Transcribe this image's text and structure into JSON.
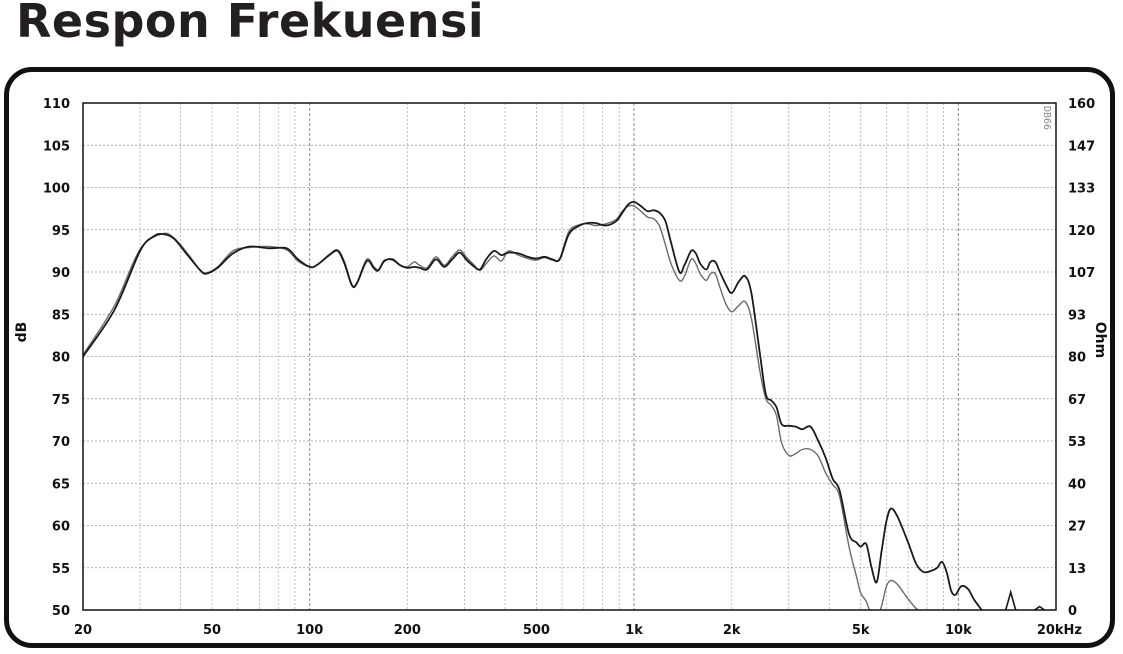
{
  "page": {
    "title": "Respon Frekuensi"
  },
  "chart_data": {
    "type": "line",
    "title": "Respon Frekuensi",
    "xlabel": "",
    "ylabel": "dB",
    "y2label": "Ohm",
    "x_scale": "log",
    "xlim": [
      20,
      20000
    ],
    "ylim": [
      50,
      110
    ],
    "y2lim": [
      0,
      160
    ],
    "x_ticks": [
      {
        "value": 20,
        "label": "20"
      },
      {
        "value": 50,
        "label": "50"
      },
      {
        "value": 100,
        "label": "100"
      },
      {
        "value": 200,
        "label": "200"
      },
      {
        "value": 500,
        "label": "500"
      },
      {
        "value": 1000,
        "label": "1k"
      },
      {
        "value": 2000,
        "label": "2k"
      },
      {
        "value": 5000,
        "label": "5k"
      },
      {
        "value": 10000,
        "label": "10k"
      },
      {
        "value": 20000,
        "label": "20kHz"
      }
    ],
    "y_ticks": [
      50,
      55,
      60,
      65,
      70,
      75,
      80,
      85,
      90,
      95,
      100,
      105,
      110
    ],
    "y2_ticks": [
      "0",
      "13",
      "27",
      "40",
      "53",
      "67",
      "80",
      "93",
      "107",
      "120",
      "133",
      "147",
      "160"
    ],
    "watermark": "DB66",
    "grid": true,
    "series": [
      {
        "name": "response-dark",
        "color": "#1a1a1a",
        "points": [
          [
            20,
            80
          ],
          [
            25,
            85.5
          ],
          [
            30,
            92.5
          ],
          [
            33,
            94.2
          ],
          [
            35,
            94.5
          ],
          [
            38,
            94
          ],
          [
            42,
            92
          ],
          [
            46,
            90.2
          ],
          [
            48,
            89.8
          ],
          [
            52,
            90.5
          ],
          [
            58,
            92.2
          ],
          [
            65,
            93
          ],
          [
            75,
            92.8
          ],
          [
            85,
            92.8
          ],
          [
            92,
            91.5
          ],
          [
            100,
            90.6
          ],
          [
            105,
            90.8
          ],
          [
            115,
            92
          ],
          [
            122,
            92.5
          ],
          [
            128,
            91
          ],
          [
            135,
            88.4
          ],
          [
            140,
            88.7
          ],
          [
            150,
            91.3
          ],
          [
            158,
            90.4
          ],
          [
            163,
            90.2
          ],
          [
            170,
            91.3
          ],
          [
            180,
            91.5
          ],
          [
            190,
            90.8
          ],
          [
            200,
            90.5
          ],
          [
            210,
            90.6
          ],
          [
            218,
            90.5
          ],
          [
            230,
            90.3
          ],
          [
            245,
            91.5
          ],
          [
            260,
            90.6
          ],
          [
            275,
            91.5
          ],
          [
            290,
            92.3
          ],
          [
            305,
            91.4
          ],
          [
            320,
            90.7
          ],
          [
            335,
            90.3
          ],
          [
            350,
            91.5
          ],
          [
            370,
            92.5
          ],
          [
            390,
            92
          ],
          [
            410,
            92.3
          ],
          [
            440,
            92.2
          ],
          [
            470,
            91.8
          ],
          [
            500,
            91.6
          ],
          [
            530,
            91.8
          ],
          [
            560,
            91.5
          ],
          [
            590,
            91.5
          ],
          [
            630,
            94.5
          ],
          [
            680,
            95.5
          ],
          [
            720,
            95.8
          ],
          [
            760,
            95.8
          ],
          [
            820,
            95.5
          ],
          [
            880,
            96
          ],
          [
            920,
            97
          ],
          [
            960,
            98
          ],
          [
            1000,
            98.3
          ],
          [
            1050,
            97.8
          ],
          [
            1100,
            97.2
          ],
          [
            1150,
            97.3
          ],
          [
            1200,
            97
          ],
          [
            1250,
            96
          ],
          [
            1300,
            93.5
          ],
          [
            1380,
            90
          ],
          [
            1430,
            90.8
          ],
          [
            1500,
            92.5
          ],
          [
            1550,
            92.2
          ],
          [
            1600,
            91
          ],
          [
            1670,
            90.3
          ],
          [
            1720,
            91.2
          ],
          [
            1780,
            91.2
          ],
          [
            1840,
            90
          ],
          [
            1920,
            88.5
          ],
          [
            2000,
            87.5
          ],
          [
            2100,
            88.8
          ],
          [
            2200,
            89.5
          ],
          [
            2300,
            87.5
          ],
          [
            2450,
            80
          ],
          [
            2550,
            75.5
          ],
          [
            2650,
            74.8
          ],
          [
            2750,
            74
          ],
          [
            2850,
            72
          ],
          [
            3000,
            71.8
          ],
          [
            3150,
            71.7
          ],
          [
            3300,
            71.4
          ],
          [
            3500,
            71.7
          ],
          [
            3700,
            70
          ],
          [
            3900,
            68
          ],
          [
            4100,
            65.5
          ],
          [
            4300,
            64.2
          ],
          [
            4600,
            59
          ],
          [
            4850,
            58
          ],
          [
            5000,
            57.5
          ],
          [
            5200,
            57.8
          ],
          [
            5400,
            55
          ],
          [
            5600,
            53.3
          ],
          [
            5800,
            57
          ],
          [
            6000,
            60.5
          ],
          [
            6200,
            62
          ],
          [
            6500,
            61
          ],
          [
            7000,
            58
          ],
          [
            7400,
            55.5
          ],
          [
            7800,
            54.5
          ],
          [
            8200,
            54.6
          ],
          [
            8600,
            55
          ],
          [
            8900,
            55.7
          ],
          [
            9200,
            54.5
          ],
          [
            9500,
            52.3
          ],
          [
            9800,
            51.8
          ],
          [
            10200,
            52.8
          ],
          [
            10700,
            52.5
          ],
          [
            11200,
            51.2
          ],
          [
            11800,
            50
          ]
        ]
      },
      {
        "name": "response-gray",
        "color": "#6b6b6b",
        "points": [
          [
            20,
            80.2
          ],
          [
            25,
            86
          ],
          [
            30,
            92.7
          ],
          [
            35,
            94.5
          ],
          [
            38,
            94.1
          ],
          [
            42,
            92.2
          ],
          [
            46,
            90.2
          ],
          [
            48,
            89.9
          ],
          [
            52,
            90.6
          ],
          [
            58,
            92.5
          ],
          [
            65,
            92.9
          ],
          [
            75,
            93
          ],
          [
            85,
            92.6
          ],
          [
            92,
            91.3
          ],
          [
            100,
            90.6
          ],
          [
            105,
            90.8
          ],
          [
            115,
            92.1
          ],
          [
            122,
            92.6
          ],
          [
            128,
            91.2
          ],
          [
            135,
            88.5
          ],
          [
            140,
            88.8
          ],
          [
            150,
            91.5
          ],
          [
            158,
            90.6
          ],
          [
            163,
            90.3
          ],
          [
            170,
            91.4
          ],
          [
            180,
            91.4
          ],
          [
            190,
            90.8
          ],
          [
            200,
            90.6
          ],
          [
            210,
            91.2
          ],
          [
            218,
            90.8
          ],
          [
            230,
            90.5
          ],
          [
            245,
            91.8
          ],
          [
            260,
            90.8
          ],
          [
            275,
            91.8
          ],
          [
            290,
            92.6
          ],
          [
            305,
            91.7
          ],
          [
            320,
            90.9
          ],
          [
            335,
            90.2
          ],
          [
            350,
            91
          ],
          [
            370,
            91.9
          ],
          [
            390,
            91.3
          ],
          [
            410,
            92.5
          ],
          [
            440,
            92
          ],
          [
            470,
            91.6
          ],
          [
            500,
            91.4
          ],
          [
            530,
            91.7
          ],
          [
            560,
            91.4
          ],
          [
            590,
            91.6
          ],
          [
            630,
            94.8
          ],
          [
            680,
            95.6
          ],
          [
            720,
            95.7
          ],
          [
            760,
            95.5
          ],
          [
            820,
            95.7
          ],
          [
            880,
            96.2
          ],
          [
            920,
            97.2
          ],
          [
            960,
            97.8
          ],
          [
            1000,
            97.8
          ],
          [
            1050,
            97.2
          ],
          [
            1100,
            96.5
          ],
          [
            1150,
            96.3
          ],
          [
            1200,
            95.4
          ],
          [
            1250,
            93.2
          ],
          [
            1300,
            91
          ],
          [
            1380,
            89
          ],
          [
            1430,
            89.5
          ],
          [
            1500,
            91.5
          ],
          [
            1550,
            91
          ],
          [
            1600,
            89.8
          ],
          [
            1670,
            89
          ],
          [
            1720,
            89.8
          ],
          [
            1780,
            89.8
          ],
          [
            1840,
            88.2
          ],
          [
            1920,
            86.2
          ],
          [
            2000,
            85.3
          ],
          [
            2100,
            86
          ],
          [
            2200,
            86.5
          ],
          [
            2300,
            84.5
          ],
          [
            2450,
            78
          ],
          [
            2550,
            75
          ],
          [
            2650,
            74.2
          ],
          [
            2750,
            73
          ],
          [
            2850,
            69.8
          ],
          [
            3000,
            68.3
          ],
          [
            3150,
            68.5
          ],
          [
            3300,
            69
          ],
          [
            3500,
            69
          ],
          [
            3700,
            68.2
          ],
          [
            3900,
            66.2
          ],
          [
            4100,
            64.8
          ],
          [
            4300,
            63.5
          ],
          [
            4600,
            57.5
          ],
          [
            4850,
            54
          ],
          [
            5000,
            52
          ],
          [
            5200,
            51
          ],
          [
            5400,
            49.3
          ],
          [
            5600,
            49
          ],
          [
            5800,
            50.5
          ],
          [
            6000,
            52.8
          ],
          [
            6200,
            53.5
          ],
          [
            6500,
            53
          ],
          [
            7000,
            51.3
          ],
          [
            7400,
            50.2
          ],
          [
            7800,
            49.6
          ]
        ]
      }
    ],
    "spikes": [
      {
        "x": 14500,
        "y": 52.1
      },
      {
        "x": 17800,
        "y": 50.4
      }
    ]
  }
}
